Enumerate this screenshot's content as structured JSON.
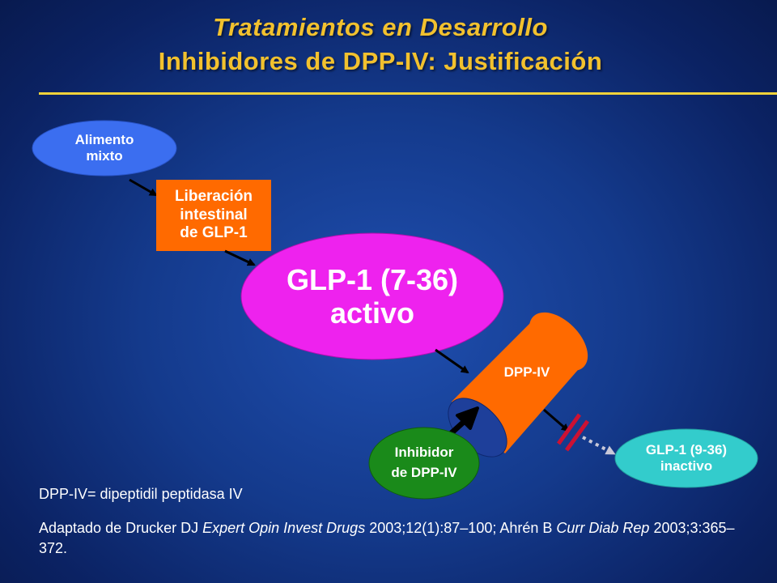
{
  "title": {
    "line1": "Tratamientos en Desarrollo",
    "line2": "Inhibidores de DPP-IV: Justificación"
  },
  "nodes": {
    "alimento": "Alimento\nmixto",
    "liberacion": "Liberación\nintestinal\nde GLP-1",
    "glp1_active": "GLP-1 (7-36)\nactivo",
    "dppiv": "DPP-IV",
    "inhibidor": "Inhibidor\nde DPP-IV",
    "glp1_inactive": "GLP-1 (9-36)\ninactivo"
  },
  "footnotes": {
    "definition": "DPP-IV= dipeptidil peptidasa IV",
    "ref_part1": "Adaptado de Drucker DJ ",
    "ref_journal1": "Expert Opin Invest Drugs",
    "ref_part2": " 2003;12(1):87–100; Ahrén B ",
    "ref_journal2": "Curr Diab Rep",
    "ref_part3": " 2003;3:365–372."
  },
  "colors": {
    "title": "#f2c12e",
    "alimento_fill": "#3b6ef0",
    "liberacion_fill": "#ff6a00",
    "glp1_active_fill": "#ee22ee",
    "dppiv_fill": "#ff6a00",
    "inhibidor_fill": "#1a8a1a",
    "glp1_inactive_fill": "#33cccc",
    "block_mark": "#cc1133"
  },
  "icons": {
    "inhibit_arrow": "block-arrow-icon",
    "blocked_mark": "double-slash-block-icon"
  }
}
